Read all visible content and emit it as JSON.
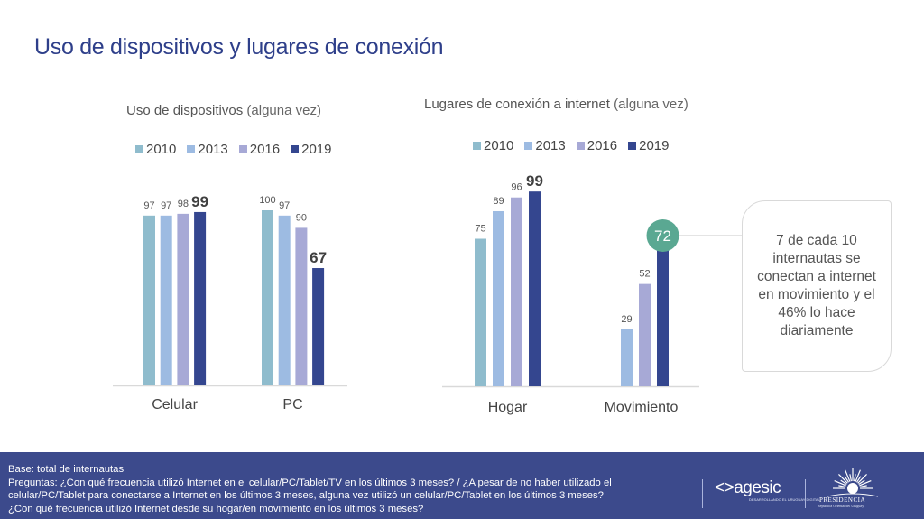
{
  "page": {
    "title": "Uso de dispositivos y lugares de conexión"
  },
  "chart_data": [
    {
      "type": "bar",
      "title": "Uso de dispositivos",
      "subtitle": "(alguna vez)",
      "categories": [
        "Celular",
        "PC"
      ],
      "series": [
        {
          "name": "2010",
          "color": "#8fbccd",
          "values": [
            97,
            100
          ]
        },
        {
          "name": "2013",
          "color": "#9dbbe2",
          "values": [
            97,
            97
          ]
        },
        {
          "name": "2016",
          "color": "#a7a9d6",
          "values": [
            98,
            90
          ]
        },
        {
          "name": "2019",
          "color": "#34468f",
          "values": [
            99,
            67
          ]
        }
      ],
      "highlight_series": "2019",
      "ylim": [
        0,
        100
      ],
      "legend": "top",
      "grid": false
    },
    {
      "type": "bar",
      "title": "Lugares de conexión a internet",
      "subtitle": "(alguna vez)",
      "categories": [
        "Hogar",
        "Movimiento"
      ],
      "series": [
        {
          "name": "2010",
          "color": "#8fbccd",
          "values": [
            75,
            null
          ]
        },
        {
          "name": "2013",
          "color": "#9dbbe2",
          "values": [
            89,
            29
          ]
        },
        {
          "name": "2016",
          "color": "#a7a9d6",
          "values": [
            96,
            52
          ]
        },
        {
          "name": "2019",
          "color": "#34468f",
          "values": [
            99,
            72
          ]
        }
      ],
      "highlight_series": "2019",
      "highlight_marker": {
        "category": "Movimiento",
        "series": "2019",
        "value": 72,
        "color": "#5aa892"
      },
      "ylim": [
        0,
        100
      ],
      "legend": "top",
      "grid": false
    }
  ],
  "callout": {
    "lines": [
      "7 de cada 10",
      "internautas se",
      "conectan a internet",
      "en movimiento y el",
      "46% lo hace",
      "diariamente"
    ]
  },
  "footer": {
    "lines": [
      "Base: total de internautas",
      "Preguntas: ¿Con qué frecuencia utilizó Internet en el celular/PC/Tablet/TV en los últimos 3 meses? / ¿A pesar de no haber utilizado el",
      "celular/PC/Tablet para conectarse a Internet en los últimos 3 meses, alguna vez utilizó un celular/PC/Tablet en los últimos 3 meses?",
      "¿Con qué frecuencia utilizó Internet desde su hogar/en movimiento en los últimos 3 meses?"
    ],
    "logos": {
      "agesic": "<>agesic",
      "agesic_sub": "DESARROLLANDO EL URUGUAY DIGITAL",
      "presidencia": "PRESIDENCIA",
      "presidencia_sub": "República Oriental del Uruguay"
    }
  }
}
